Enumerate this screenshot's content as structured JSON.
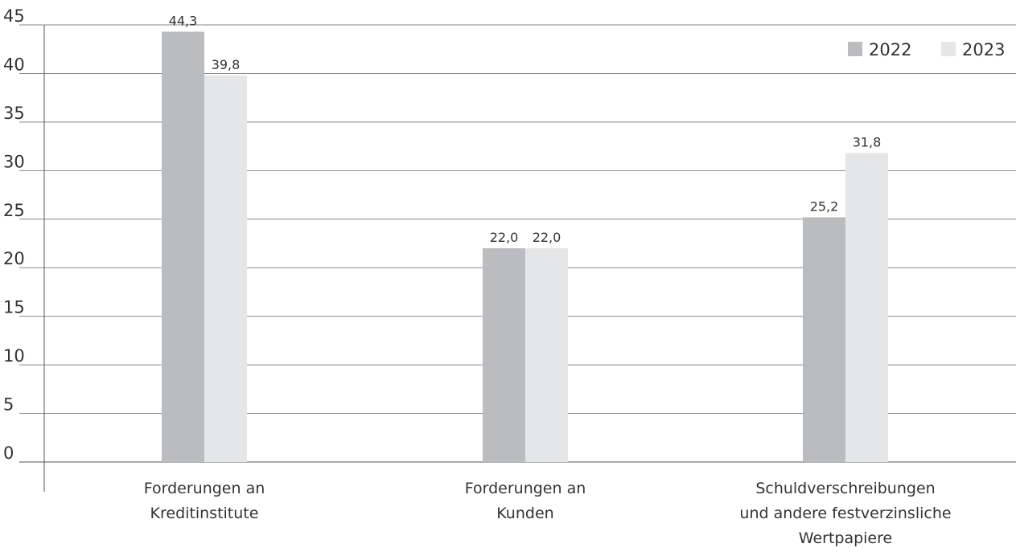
{
  "chart_data": {
    "type": "bar",
    "categories": [
      [
        "Forderungen an",
        "Kreditinstitute"
      ],
      [
        "Forderungen an",
        "Kunden"
      ],
      [
        "Schuldverschreibungen",
        "und andere festverzinsliche",
        "Wertpapiere"
      ]
    ],
    "series": [
      {
        "name": "2022",
        "color": "#bbbcc0",
        "values": [
          44.3,
          22.0,
          25.2
        ],
        "value_labels": [
          "44,3",
          "22,0",
          "25,2"
        ]
      },
      {
        "name": "2023",
        "color": "#e5e6e8",
        "values": [
          39.8,
          22.0,
          31.8
        ],
        "value_labels": [
          "39,8",
          "22,0",
          "31,8"
        ]
      }
    ],
    "ylim": [
      0,
      45
    ],
    "yticks": [
      0,
      5,
      10,
      15,
      20,
      25,
      30,
      35,
      40,
      45
    ],
    "title": "",
    "xlabel": "",
    "ylabel": "",
    "grid": true,
    "legend": "top-right"
  }
}
